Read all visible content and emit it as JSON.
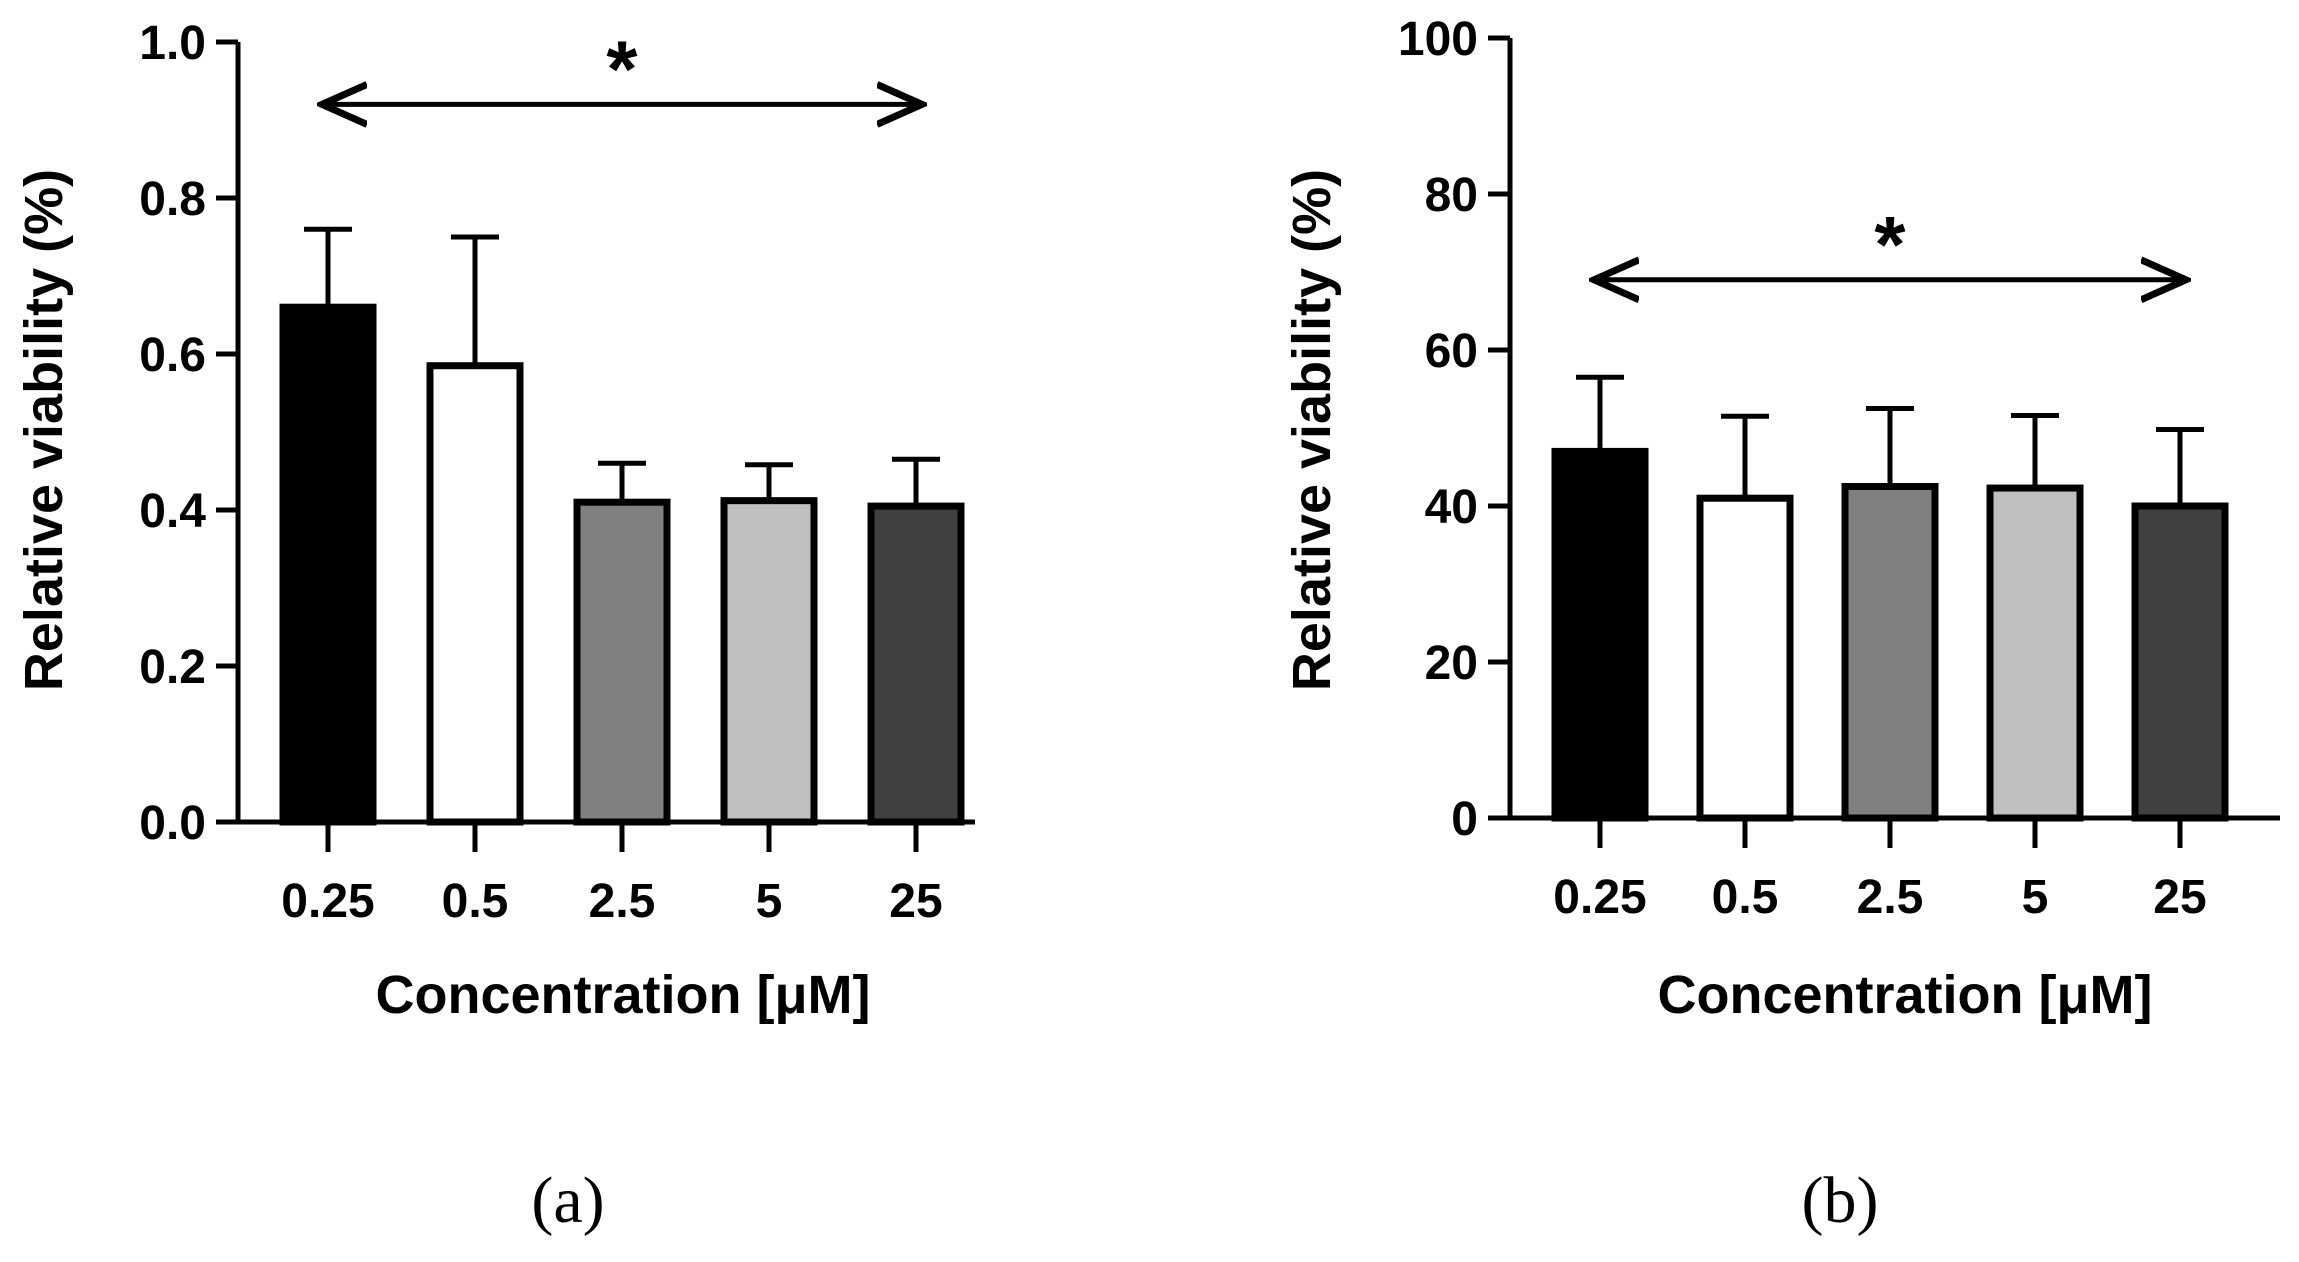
{
  "chart_data": [
    {
      "panel": "(a)",
      "type": "bar",
      "categories": [
        "0.25",
        "0.5",
        "2.5",
        "5",
        "25"
      ],
      "values": [
        0.66,
        0.585,
        0.41,
        0.412,
        0.405
      ],
      "errors": [
        0.1,
        0.165,
        0.05,
        0.046,
        0.06
      ],
      "colors": [
        "#000000",
        "#ffffff",
        "#808080",
        "#c0c0c0",
        "#404040"
      ],
      "xlabel": "Concentration [μM]",
      "ylabel": "Relative viability (%)",
      "ylim": [
        0,
        1.0
      ],
      "yticks": [
        "0.0",
        "0.2",
        "0.4",
        "0.6",
        "0.8",
        "1.0"
      ],
      "ytick_values": [
        0,
        0.2,
        0.4,
        0.6,
        0.8,
        1.0
      ],
      "annotation": "*",
      "significance_bracket": {
        "from": "0.25",
        "to": "25",
        "y": 0.92
      }
    },
    {
      "panel": "(b)",
      "type": "bar",
      "categories": [
        "0.25",
        "0.5",
        "2.5",
        "5",
        "25"
      ],
      "values": [
        47,
        41,
        42.5,
        42.3,
        40
      ],
      "errors": [
        9.5,
        10.5,
        10,
        9.3,
        9.8
      ],
      "colors": [
        "#000000",
        "#ffffff",
        "#808080",
        "#c0c0c0",
        "#404040"
      ],
      "xlabel": "Concentration [μM]",
      "ylabel": "Relative viability (%)",
      "ylim": [
        0,
        100
      ],
      "yticks": [
        "0",
        "20",
        "40",
        "60",
        "80",
        "100"
      ],
      "ytick_values": [
        0,
        20,
        40,
        60,
        80,
        100
      ],
      "annotation": "*",
      "significance_bracket": {
        "from": "0.25",
        "to": "25",
        "y": 69
      }
    }
  ]
}
